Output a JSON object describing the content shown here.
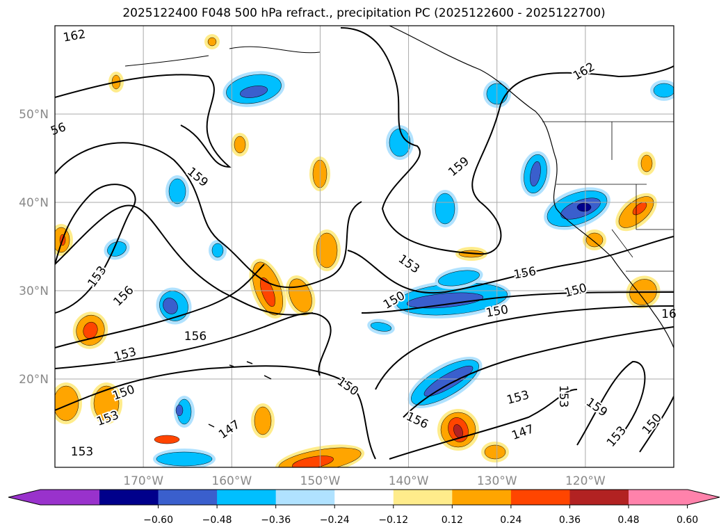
{
  "title": "2025122400 F048 500 hPa refract., precipitation PC (2025122600 - 2025122700)",
  "map": {
    "lon_range": [
      -180,
      -110
    ],
    "lat_range": [
      10,
      60
    ],
    "lon_labels": [
      "170°W",
      "160°W",
      "150°W",
      "140°W",
      "130°W",
      "120°W"
    ],
    "lon_values": [
      -170,
      -160,
      -150,
      -140,
      -130,
      -120
    ],
    "lat_labels": [
      "50°N",
      "40°N",
      "30°N",
      "20°N"
    ],
    "lat_values": [
      50,
      40,
      30,
      20
    ],
    "contour_labels": [
      "162",
      "56",
      "159",
      "153",
      "156",
      "156",
      "153",
      "150",
      "153",
      "156",
      "147",
      "150",
      "159",
      "153",
      "150",
      "153",
      "150",
      "162",
      "153",
      "147",
      "156",
      "153",
      "150",
      "159",
      "153",
      "150",
      "16"
    ]
  },
  "colorbar": {
    "ticks": [
      "−0.60",
      "−0.48",
      "−0.36",
      "−0.24",
      "−0.12",
      "0.12",
      "0.24",
      "0.36",
      "0.48",
      "0.60"
    ],
    "colors": [
      "#9932cc",
      "#00008b",
      "#3a5fcd",
      "#00bfff",
      "#b0e2ff",
      "#ffffff",
      "#ffec8b",
      "#ffa500",
      "#ff4500",
      "#b22222",
      "#ff82ab"
    ]
  }
}
